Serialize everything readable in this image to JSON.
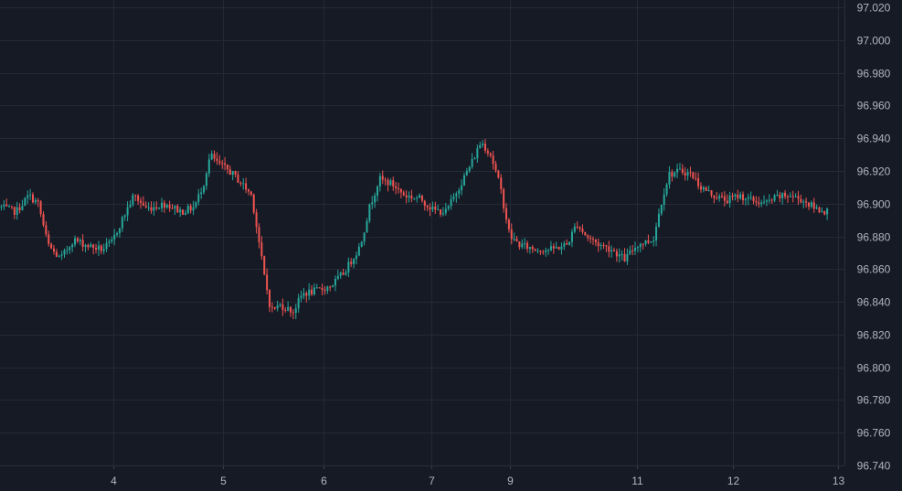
{
  "theme": {
    "background": "#161a25",
    "grid": "#242936",
    "axis_text": "#b2b5be",
    "up": "#26a69a",
    "down": "#ef5350"
  },
  "chart_data": {
    "type": "candlestick",
    "y_axis": {
      "position": "right",
      "ylim": [
        96.74,
        97.02
      ],
      "ticks": [
        "97.020",
        "97.000",
        "96.980",
        "96.960",
        "96.940",
        "96.920",
        "96.900",
        "96.880",
        "96.860",
        "96.840",
        "96.820",
        "96.800",
        "96.780",
        "96.760",
        "96.740"
      ]
    },
    "x_axis": {
      "ticks": [
        {
          "label": "4",
          "pos": 3.55
        },
        {
          "label": "5",
          "pos": 7.0
        },
        {
          "label": "6",
          "pos": 10.15
        },
        {
          "label": "7",
          "pos": 13.55
        },
        {
          "label": "9",
          "pos": 16.0
        },
        {
          "label": "11",
          "pos": 20.0
        },
        {
          "label": "12",
          "pos": 23.0
        },
        {
          "label": "13",
          "pos": 26.3
        }
      ],
      "range": [
        0,
        26.5
      ]
    },
    "grid": true,
    "series": [
      {
        "anchors": [
          [
            0.0,
            96.898
          ],
          [
            0.5,
            96.895
          ],
          [
            0.9,
            96.905
          ],
          [
            1.2,
            96.9
          ],
          [
            1.5,
            96.875
          ],
          [
            1.7,
            96.87
          ],
          [
            1.9,
            96.866
          ],
          [
            2.3,
            96.878
          ],
          [
            2.8,
            96.874
          ],
          [
            3.2,
            96.872
          ],
          [
            3.5,
            96.876
          ],
          [
            3.9,
            96.893
          ],
          [
            4.2,
            96.905
          ],
          [
            4.6,
            96.897
          ],
          [
            5.2,
            96.9
          ],
          [
            5.7,
            96.895
          ],
          [
            6.1,
            96.898
          ],
          [
            6.4,
            96.913
          ],
          [
            6.6,
            96.93
          ],
          [
            6.8,
            96.925
          ],
          [
            7.2,
            96.92
          ],
          [
            7.6,
            96.912
          ],
          [
            7.9,
            96.905
          ],
          [
            8.1,
            96.88
          ],
          [
            8.3,
            96.855
          ],
          [
            8.5,
            96.835
          ],
          [
            8.8,
            96.838
          ],
          [
            9.2,
            96.834
          ],
          [
            9.5,
            96.845
          ],
          [
            10.0,
            96.847
          ],
          [
            10.4,
            96.85
          ],
          [
            10.8,
            96.858
          ],
          [
            11.3,
            96.874
          ],
          [
            11.6,
            96.898
          ],
          [
            11.9,
            96.915
          ],
          [
            12.3,
            96.912
          ],
          [
            12.7,
            96.905
          ],
          [
            13.2,
            96.903
          ],
          [
            13.6,
            96.896
          ],
          [
            14.0,
            96.895
          ],
          [
            14.4,
            96.91
          ],
          [
            14.8,
            96.925
          ],
          [
            15.1,
            96.938
          ],
          [
            15.4,
            96.93
          ],
          [
            15.7,
            96.91
          ],
          [
            16.0,
            96.88
          ],
          [
            16.3,
            96.875
          ],
          [
            16.8,
            96.872
          ],
          [
            17.3,
            96.872
          ],
          [
            17.8,
            96.875
          ],
          [
            18.1,
            96.888
          ],
          [
            18.4,
            96.88
          ],
          [
            18.8,
            96.875
          ],
          [
            19.2,
            96.872
          ],
          [
            19.6,
            96.866
          ],
          [
            20.0,
            96.875
          ],
          [
            20.5,
            96.878
          ],
          [
            20.8,
            96.905
          ],
          [
            21.0,
            96.918
          ],
          [
            21.4,
            96.92
          ],
          [
            21.7,
            96.918
          ],
          [
            22.0,
            96.91
          ],
          [
            22.4,
            96.905
          ],
          [
            22.8,
            96.902
          ],
          [
            23.2,
            96.905
          ],
          [
            23.6,
            96.902
          ],
          [
            24.0,
            96.9
          ],
          [
            24.4,
            96.904
          ],
          [
            24.8,
            96.905
          ],
          [
            25.2,
            96.902
          ],
          [
            25.6,
            96.897
          ],
          [
            26.0,
            96.895
          ]
        ],
        "count": 315,
        "volatility": 0.0045
      }
    ]
  }
}
